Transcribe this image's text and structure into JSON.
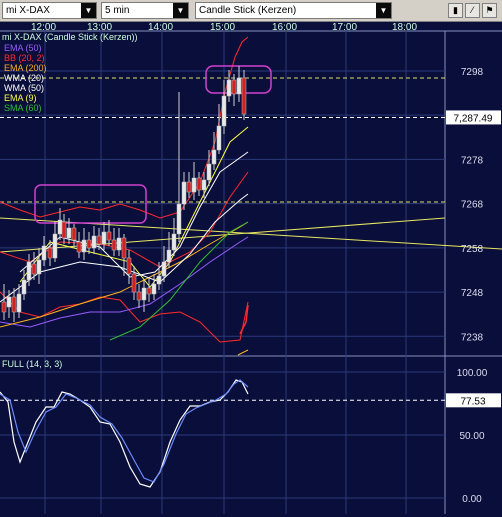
{
  "toolbar": {
    "symbol": "mi X-DAX",
    "interval": "5 min",
    "chart_style": "Candle Stick (Kerzen)",
    "buttons": [
      "bar-chart-icon",
      "line-chart-icon",
      "flag-icon"
    ]
  },
  "header": {
    "title": "mi X-DAX (Candle Stick (Kerzen))",
    "times": [
      "12:00",
      "13:00",
      "14:00",
      "15:00",
      "16:00",
      "17:00",
      "18:00"
    ]
  },
  "indicators": [
    {
      "label": "EMA (50)",
      "color": "#9a5cff"
    },
    {
      "label": "BB (20, 2)",
      "color": "#ff3030"
    },
    {
      "label": "EMA (200)",
      "color": "#ffb21a"
    },
    {
      "label": "WMA (20)",
      "color": "#ffffff"
    },
    {
      "label": "WMA (50)",
      "color": "#ffffff"
    },
    {
      "label": "EMA (9)",
      "color": "#ffff40"
    },
    {
      "label": "SMA (60)",
      "color": "#30c030"
    }
  ],
  "price_axis": {
    "ticks": [
      "7298",
      "7288",
      "7278",
      "7268",
      "7258",
      "7248",
      "7238"
    ],
    "current": "7,287.49"
  },
  "stoch": {
    "label": "FULL (14, 3, 3)",
    "ticks": [
      "100.00",
      "50.00",
      "0.00"
    ],
    "current": "77.53"
  },
  "chart_data": {
    "type": "candlestick",
    "x_range": [
      "11:30",
      "18:30"
    ],
    "y_range": [
      7234,
      7305
    ],
    "current_price": 7287.49,
    "stoch_current": 77.53
  },
  "colors": {
    "background": "#0a0e3a",
    "grid": "#2a3a7a",
    "up": "#20c020",
    "down": "#d02020",
    "annotation": "#d040d0",
    "hline": "#e0e060"
  }
}
